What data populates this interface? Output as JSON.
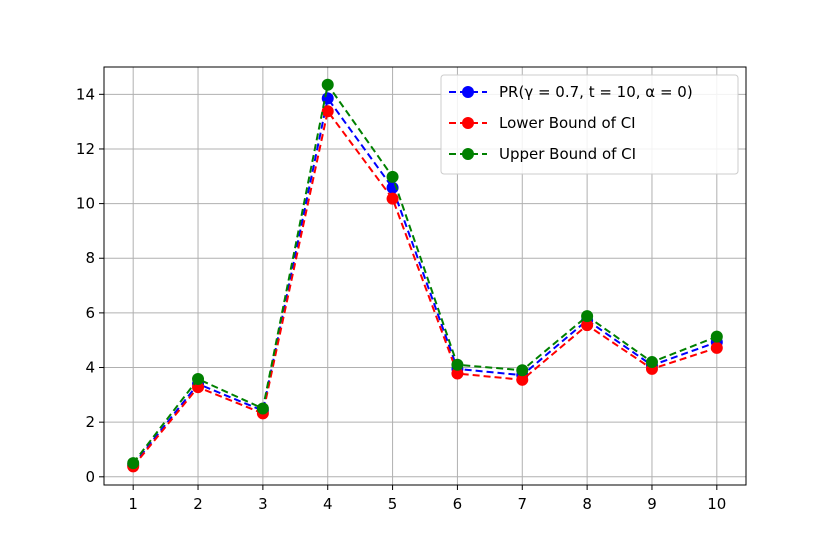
{
  "chart_data": {
    "type": "line",
    "title": "",
    "xlabel": "",
    "ylabel": "",
    "x": [
      1,
      2,
      3,
      4,
      5,
      6,
      7,
      8,
      9,
      10
    ],
    "xlim": [
      0.55,
      10.45
    ],
    "ylim": [
      -0.3,
      15.0
    ],
    "xticks": [
      "1",
      "2",
      "3",
      "4",
      "5",
      "6",
      "7",
      "8",
      "9",
      "10"
    ],
    "yticks": [
      "0",
      "2",
      "4",
      "6",
      "8",
      "10",
      "12",
      "14"
    ],
    "grid": true,
    "legend_position": "top-right",
    "series": [
      {
        "name": "PR(γ = 0.7, t = 10, α = 0)",
        "color": "#0000ff",
        "linestyle": "dashed",
        "marker": "circle",
        "values": [
          0.43,
          3.4,
          2.42,
          13.85,
          10.58,
          3.95,
          3.72,
          5.73,
          4.08,
          4.93
        ]
      },
      {
        "name": "Lower Bound of CI",
        "color": "#ff0000",
        "linestyle": "dashed",
        "marker": "circle",
        "values": [
          0.38,
          3.28,
          2.32,
          13.38,
          10.18,
          3.78,
          3.55,
          5.55,
          3.95,
          4.72
        ]
      },
      {
        "name": "Upper Bound of CI",
        "color": "#008000",
        "linestyle": "dashed",
        "marker": "circle",
        "values": [
          0.5,
          3.58,
          2.5,
          14.35,
          10.98,
          4.1,
          3.9,
          5.88,
          4.2,
          5.13
        ]
      }
    ]
  }
}
